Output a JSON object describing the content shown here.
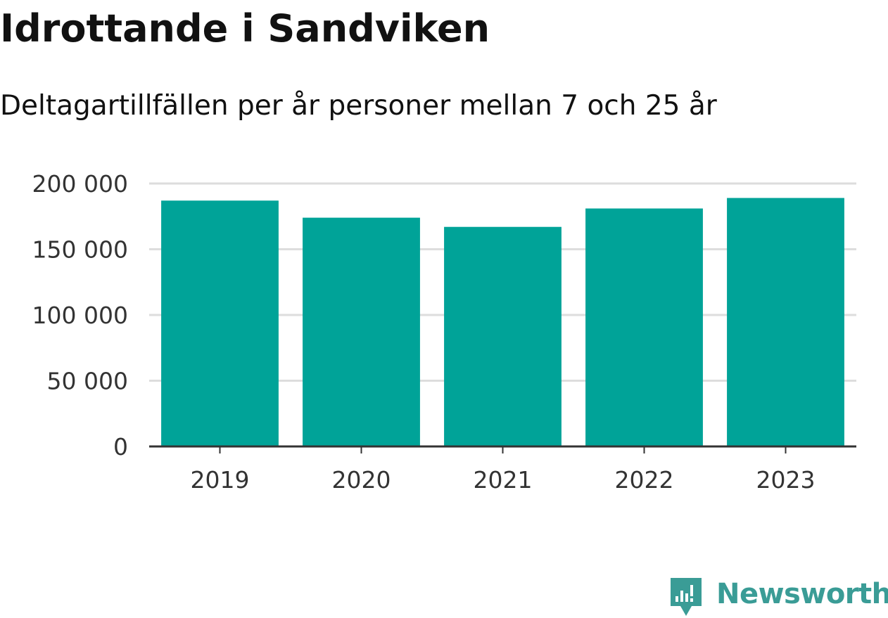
{
  "chart_data": {
    "type": "bar",
    "title": "Idrottande i Sandviken",
    "subtitle": "Deltagartillfällen per år personer mellan 7 och 25 år",
    "categories": [
      "2019",
      "2020",
      "2021",
      "2022",
      "2023"
    ],
    "values": [
      187000,
      174000,
      167000,
      181000,
      189000
    ],
    "yticks": [
      0,
      50000,
      100000,
      150000,
      200000
    ],
    "ytick_labels": [
      "0",
      "50 000",
      "100 000",
      "150 000",
      "200 000"
    ],
    "ylim": [
      0,
      200000
    ],
    "xlabel": "",
    "ylabel": "",
    "grid": true,
    "legend": "none",
    "colors": {
      "bar": "#00A398",
      "grid": "#dddddd",
      "axis": "#333333",
      "text": "#333333"
    }
  },
  "branding": {
    "name": "Newsworthy",
    "color": "#3a9c96",
    "icon": "newsworthy-logo-icon"
  }
}
